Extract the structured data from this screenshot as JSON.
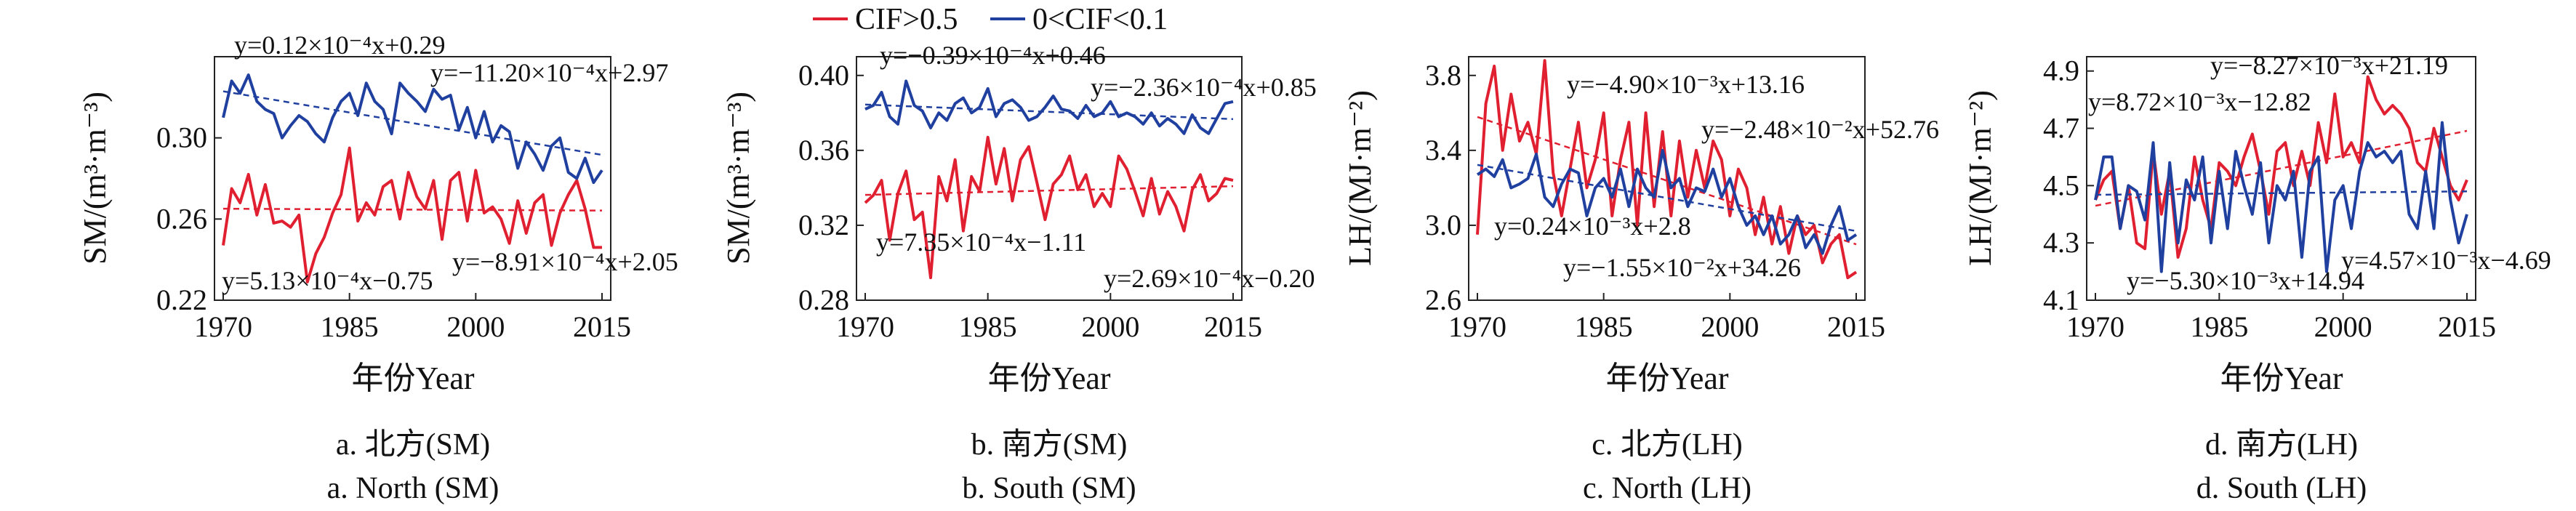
{
  "legend": {
    "items": [
      {
        "label": "CIF>0.5",
        "color": "#e02030"
      },
      {
        "label": "0<CIF<0.1",
        "color": "#2040a0"
      }
    ]
  },
  "chart_data": [
    {
      "type": "line",
      "xlabel": "年份Year",
      "ylabel": "SM/(m³·m⁻³)",
      "caption_cn": "a. 北方(SM)",
      "caption_en": "a. North (SM)",
      "xlim": [
        1970,
        2015
      ],
      "ylim": [
        0.22,
        0.34
      ],
      "xticks": [
        "1970",
        "1985",
        "2000",
        "2015"
      ],
      "yticks": [
        "0.22",
        "0.26",
        "0.30"
      ],
      "x": [
        1970,
        1971,
        1972,
        1973,
        1974,
        1975,
        1976,
        1977,
        1978,
        1979,
        1980,
        1981,
        1982,
        1983,
        1984,
        1985,
        1986,
        1987,
        1988,
        1989,
        1990,
        1991,
        1992,
        1993,
        1994,
        1995,
        1996,
        1997,
        1998,
        1999,
        2000,
        2001,
        2002,
        2003,
        2004,
        2005,
        2006,
        2007,
        2008,
        2009,
        2010,
        2011,
        2012,
        2013,
        2014,
        2015
      ],
      "series": [
        {
          "name": "CIF>0.5",
          "color": "#e02030",
          "values": [
            0.247,
            0.275,
            0.268,
            0.282,
            0.262,
            0.277,
            0.258,
            0.259,
            0.256,
            0.262,
            0.229,
            0.243,
            0.251,
            0.263,
            0.272,
            0.295,
            0.259,
            0.268,
            0.262,
            0.276,
            0.279,
            0.26,
            0.283,
            0.271,
            0.265,
            0.279,
            0.25,
            0.279,
            0.283,
            0.259,
            0.284,
            0.263,
            0.266,
            0.26,
            0.248,
            0.269,
            0.253,
            0.268,
            0.272,
            0.247,
            0.263,
            0.272,
            0.279,
            0.265,
            0.246,
            0.246
          ]
        },
        {
          "name": "0<CIF<0.1",
          "color": "#2040a0",
          "values": [
            0.31,
            0.328,
            0.322,
            0.331,
            0.318,
            0.314,
            0.312,
            0.3,
            0.306,
            0.311,
            0.308,
            0.302,
            0.298,
            0.31,
            0.318,
            0.322,
            0.311,
            0.327,
            0.318,
            0.314,
            0.302,
            0.327,
            0.322,
            0.318,
            0.313,
            0.324,
            0.319,
            0.321,
            0.304,
            0.315,
            0.3,
            0.313,
            0.298,
            0.306,
            0.303,
            0.285,
            0.298,
            0.292,
            0.284,
            0.296,
            0.3,
            0.283,
            0.28,
            0.29,
            0.278,
            0.284
          ]
        }
      ],
      "annotations": [
        {
          "text": "y=0.12×10⁻⁴x+0.29"
        },
        {
          "text": "y=−11.20×10⁻⁴x+2.97"
        },
        {
          "text": "y=5.13×10⁻⁴x−0.75"
        },
        {
          "text": "y=−8.91×10⁻⁴x+2.05"
        }
      ]
    },
    {
      "type": "line",
      "xlabel": "年份Year",
      "ylabel": "SM/(m³·m⁻³)",
      "caption_cn": "b. 南方(SM)",
      "caption_en": "b. South (SM)",
      "xlim": [
        1970,
        2015
      ],
      "ylim": [
        0.28,
        0.41
      ],
      "xticks": [
        "1970",
        "1985",
        "2000",
        "2015"
      ],
      "yticks": [
        "0.28",
        "0.32",
        "0.36",
        "0.40"
      ],
      "x": [
        1970,
        1971,
        1972,
        1973,
        1974,
        1975,
        1976,
        1977,
        1978,
        1979,
        1980,
        1981,
        1982,
        1983,
        1984,
        1985,
        1986,
        1987,
        1988,
        1989,
        1990,
        1991,
        1992,
        1993,
        1994,
        1995,
        1996,
        1997,
        1998,
        1999,
        2000,
        2001,
        2002,
        2003,
        2004,
        2005,
        2006,
        2007,
        2008,
        2009,
        2010,
        2011,
        2012,
        2013,
        2014,
        2015
      ],
      "series": [
        {
          "name": "CIF>0.5",
          "color": "#e02030",
          "values": [
            0.332,
            0.336,
            0.344,
            0.312,
            0.337,
            0.349,
            0.323,
            0.327,
            0.292,
            0.346,
            0.333,
            0.355,
            0.317,
            0.346,
            0.338,
            0.367,
            0.342,
            0.361,
            0.333,
            0.355,
            0.362,
            0.343,
            0.323,
            0.342,
            0.347,
            0.357,
            0.339,
            0.347,
            0.33,
            0.337,
            0.33,
            0.357,
            0.35,
            0.338,
            0.325,
            0.345,
            0.326,
            0.338,
            0.33,
            0.317,
            0.339,
            0.347,
            0.333,
            0.337,
            0.345,
            0.344
          ]
        },
        {
          "name": "0<CIF<0.1",
          "color": "#2040a0",
          "values": [
            0.382,
            0.384,
            0.391,
            0.378,
            0.374,
            0.397,
            0.384,
            0.381,
            0.372,
            0.38,
            0.376,
            0.385,
            0.388,
            0.38,
            0.383,
            0.393,
            0.378,
            0.385,
            0.387,
            0.383,
            0.376,
            0.378,
            0.383,
            0.389,
            0.382,
            0.381,
            0.377,
            0.384,
            0.378,
            0.38,
            0.386,
            0.378,
            0.38,
            0.378,
            0.374,
            0.38,
            0.373,
            0.377,
            0.374,
            0.369,
            0.379,
            0.372,
            0.369,
            0.377,
            0.385,
            0.386
          ]
        }
      ],
      "annotations": [
        {
          "text": "y=−0.39×10⁻⁴x+0.46"
        },
        {
          "text": "y=−2.36×10⁻⁴x+0.85"
        },
        {
          "text": "y=7.35×10⁻⁴x−1.11"
        },
        {
          "text": "y=2.69×10⁻⁴x−0.20"
        }
      ]
    },
    {
      "type": "line",
      "xlabel": "年份Year",
      "ylabel": "LH/(MJ·m⁻²)",
      "caption_cn": "c. 北方(LH)",
      "caption_en": "c. North (LH)",
      "xlim": [
        1970,
        2015
      ],
      "ylim": [
        2.6,
        3.9
      ],
      "xticks": [
        "1970",
        "1985",
        "2000",
        "2015"
      ],
      "yticks": [
        "2.6",
        "3.0",
        "3.4",
        "3.8"
      ],
      "x": [
        1970,
        1971,
        1972,
        1973,
        1974,
        1975,
        1976,
        1977,
        1978,
        1979,
        1980,
        1981,
        1982,
        1983,
        1984,
        1985,
        1986,
        1987,
        1988,
        1989,
        1990,
        1991,
        1992,
        1993,
        1994,
        1995,
        1996,
        1997,
        1998,
        1999,
        2000,
        2001,
        2002,
        2003,
        2004,
        2005,
        2006,
        2007,
        2008,
        2009,
        2010,
        2011,
        2012,
        2013,
        2014,
        2015
      ],
      "series": [
        {
          "name": "CIF>0.5",
          "color": "#e02030",
          "values": [
            2.95,
            3.65,
            3.85,
            3.4,
            3.7,
            3.45,
            3.55,
            3.38,
            3.88,
            3.28,
            3.05,
            3.3,
            3.55,
            3.2,
            3.35,
            3.6,
            3.05,
            3.35,
            3.55,
            3.0,
            3.6,
            3.1,
            3.5,
            3.05,
            3.45,
            3.15,
            3.4,
            3.2,
            3.45,
            3.35,
            3.05,
            3.3,
            3.2,
            2.95,
            3.15,
            2.9,
            3.1,
            2.85,
            3.05,
            2.95,
            3.0,
            2.8,
            2.9,
            2.95,
            2.72,
            2.75
          ]
        },
        {
          "name": "0<CIF<0.1",
          "color": "#2040a0",
          "values": [
            3.27,
            3.3,
            3.26,
            3.35,
            3.2,
            3.22,
            3.25,
            3.38,
            3.15,
            3.1,
            3.22,
            3.3,
            3.28,
            3.05,
            3.2,
            3.25,
            3.15,
            3.3,
            3.1,
            3.3,
            3.2,
            3.15,
            3.4,
            3.2,
            3.25,
            3.1,
            3.2,
            3.18,
            3.3,
            3.15,
            3.25,
            3.1,
            3.0,
            3.05,
            2.95,
            3.05,
            2.9,
            2.95,
            3.05,
            2.88,
            2.95,
            2.85,
            3.0,
            3.1,
            2.92,
            2.95
          ]
        }
      ],
      "annotations": [
        {
          "text": "y=−4.90×10⁻³x+13.16"
        },
        {
          "text": "y=−2.48×10⁻²x+52.76"
        },
        {
          "text": "y=0.24×10⁻³x+2.8"
        },
        {
          "text": "y=−1.55×10⁻²x+34.26"
        }
      ]
    },
    {
      "type": "line",
      "xlabel": "年份Year",
      "ylabel": "LH/(MJ·m⁻²)",
      "caption_cn": "d. 南方(LH)",
      "caption_en": "d. South (LH)",
      "xlim": [
        1970,
        2015
      ],
      "ylim": [
        4.1,
        4.95
      ],
      "xticks": [
        "1970",
        "1985",
        "2000",
        "2015"
      ],
      "yticks": [
        "4.1",
        "4.3",
        "4.5",
        "4.7",
        "4.9"
      ],
      "x": [
        1970,
        1971,
        1972,
        1973,
        1974,
        1975,
        1976,
        1977,
        1978,
        1979,
        1980,
        1981,
        1982,
        1983,
        1984,
        1985,
        1986,
        1987,
        1988,
        1989,
        1990,
        1991,
        1992,
        1993,
        1994,
        1995,
        1996,
        1997,
        1998,
        1999,
        2000,
        2001,
        2002,
        2003,
        2004,
        2005,
        2006,
        2007,
        2008,
        2009,
        2010,
        2011,
        2012,
        2013,
        2014,
        2015
      ],
      "series": [
        {
          "name": "CIF>0.5",
          "color": "#e02030",
          "values": [
            4.45,
            4.52,
            4.55,
            4.35,
            4.5,
            4.3,
            4.28,
            4.62,
            4.4,
            4.55,
            4.25,
            4.35,
            4.6,
            4.45,
            4.35,
            4.58,
            4.55,
            4.5,
            4.6,
            4.68,
            4.55,
            4.4,
            4.62,
            4.65,
            4.5,
            4.62,
            4.5,
            4.72,
            4.58,
            4.82,
            4.6,
            4.65,
            4.58,
            4.88,
            4.8,
            4.75,
            4.78,
            4.75,
            4.7,
            4.58,
            4.55,
            4.7,
            4.6,
            4.5,
            4.45,
            4.52
          ]
        },
        {
          "name": "0<CIF<0.1",
          "color": "#2040a0",
          "values": [
            4.45,
            4.6,
            4.6,
            4.35,
            4.5,
            4.48,
            4.38,
            4.65,
            4.2,
            4.58,
            4.3,
            4.52,
            4.45,
            4.6,
            4.3,
            4.55,
            4.35,
            4.62,
            4.5,
            4.4,
            4.58,
            4.3,
            4.5,
            4.45,
            4.55,
            4.25,
            4.55,
            4.6,
            4.2,
            4.45,
            4.5,
            4.35,
            4.55,
            4.65,
            4.6,
            4.62,
            4.58,
            4.62,
            4.4,
            4.35,
            4.55,
            4.35,
            4.72,
            4.45,
            4.3,
            4.4
          ]
        }
      ],
      "annotations": [
        {
          "text": "y=−8.27×10⁻³x+21.19"
        },
        {
          "text": "y=8.72×10⁻³x−12.82"
        },
        {
          "text": "y=−5.30×10⁻³x+14.94"
        },
        {
          "text": "y=4.57×10⁻³x−4.69"
        }
      ]
    }
  ]
}
